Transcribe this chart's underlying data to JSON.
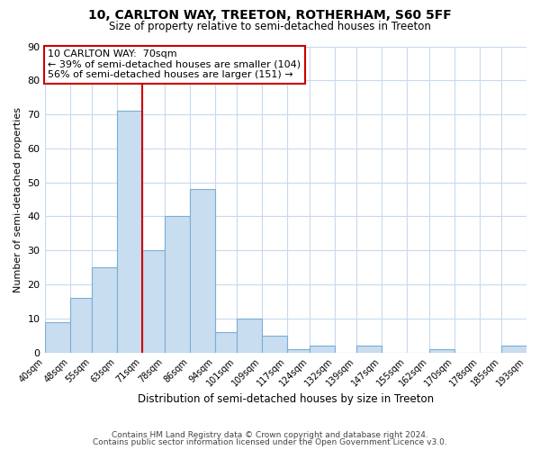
{
  "title": "10, CARLTON WAY, TREETON, ROTHERHAM, S60 5FF",
  "subtitle": "Size of property relative to semi-detached houses in Treeton",
  "xlabel": "Distribution of semi-detached houses by size in Treeton",
  "ylabel": "Number of semi-detached properties",
  "footer_line1": "Contains HM Land Registry data © Crown copyright and database right 2024.",
  "footer_line2": "Contains public sector information licensed under the Open Government Licence v3.0.",
  "bar_edges": [
    40,
    48,
    55,
    63,
    71,
    78,
    86,
    94,
    101,
    109,
    117,
    124,
    132,
    139,
    147,
    155,
    162,
    170,
    178,
    185,
    193
  ],
  "bar_heights": [
    9,
    16,
    25,
    71,
    30,
    40,
    48,
    6,
    10,
    5,
    1,
    2,
    0,
    2,
    0,
    0,
    1,
    0,
    0,
    2
  ],
  "tick_labels": [
    "40sqm",
    "48sqm",
    "55sqm",
    "63sqm",
    "71sqm",
    "78sqm",
    "86sqm",
    "94sqm",
    "101sqm",
    "109sqm",
    "117sqm",
    "124sqm",
    "132sqm",
    "139sqm",
    "147sqm",
    "155sqm",
    "162sqm",
    "170sqm",
    "178sqm",
    "185sqm",
    "193sqm"
  ],
  "bar_color": "#c9ddf0",
  "bar_edge_color": "#7bafd4",
  "highlight_x": 71,
  "highlight_line_color": "#cc0000",
  "annotation_title": "10 CARLTON WAY:  70sqm",
  "annotation_line1": "← 39% of semi-detached houses are smaller (104)",
  "annotation_line2": "56% of semi-detached houses are larger (151) →",
  "annotation_box_color": "#cc0000",
  "ylim": [
    0,
    90
  ],
  "yticks": [
    0,
    10,
    20,
    30,
    40,
    50,
    60,
    70,
    80,
    90
  ],
  "xlim": [
    40,
    193
  ],
  "background_color": "#ffffff",
  "grid_color": "#c8daf0"
}
